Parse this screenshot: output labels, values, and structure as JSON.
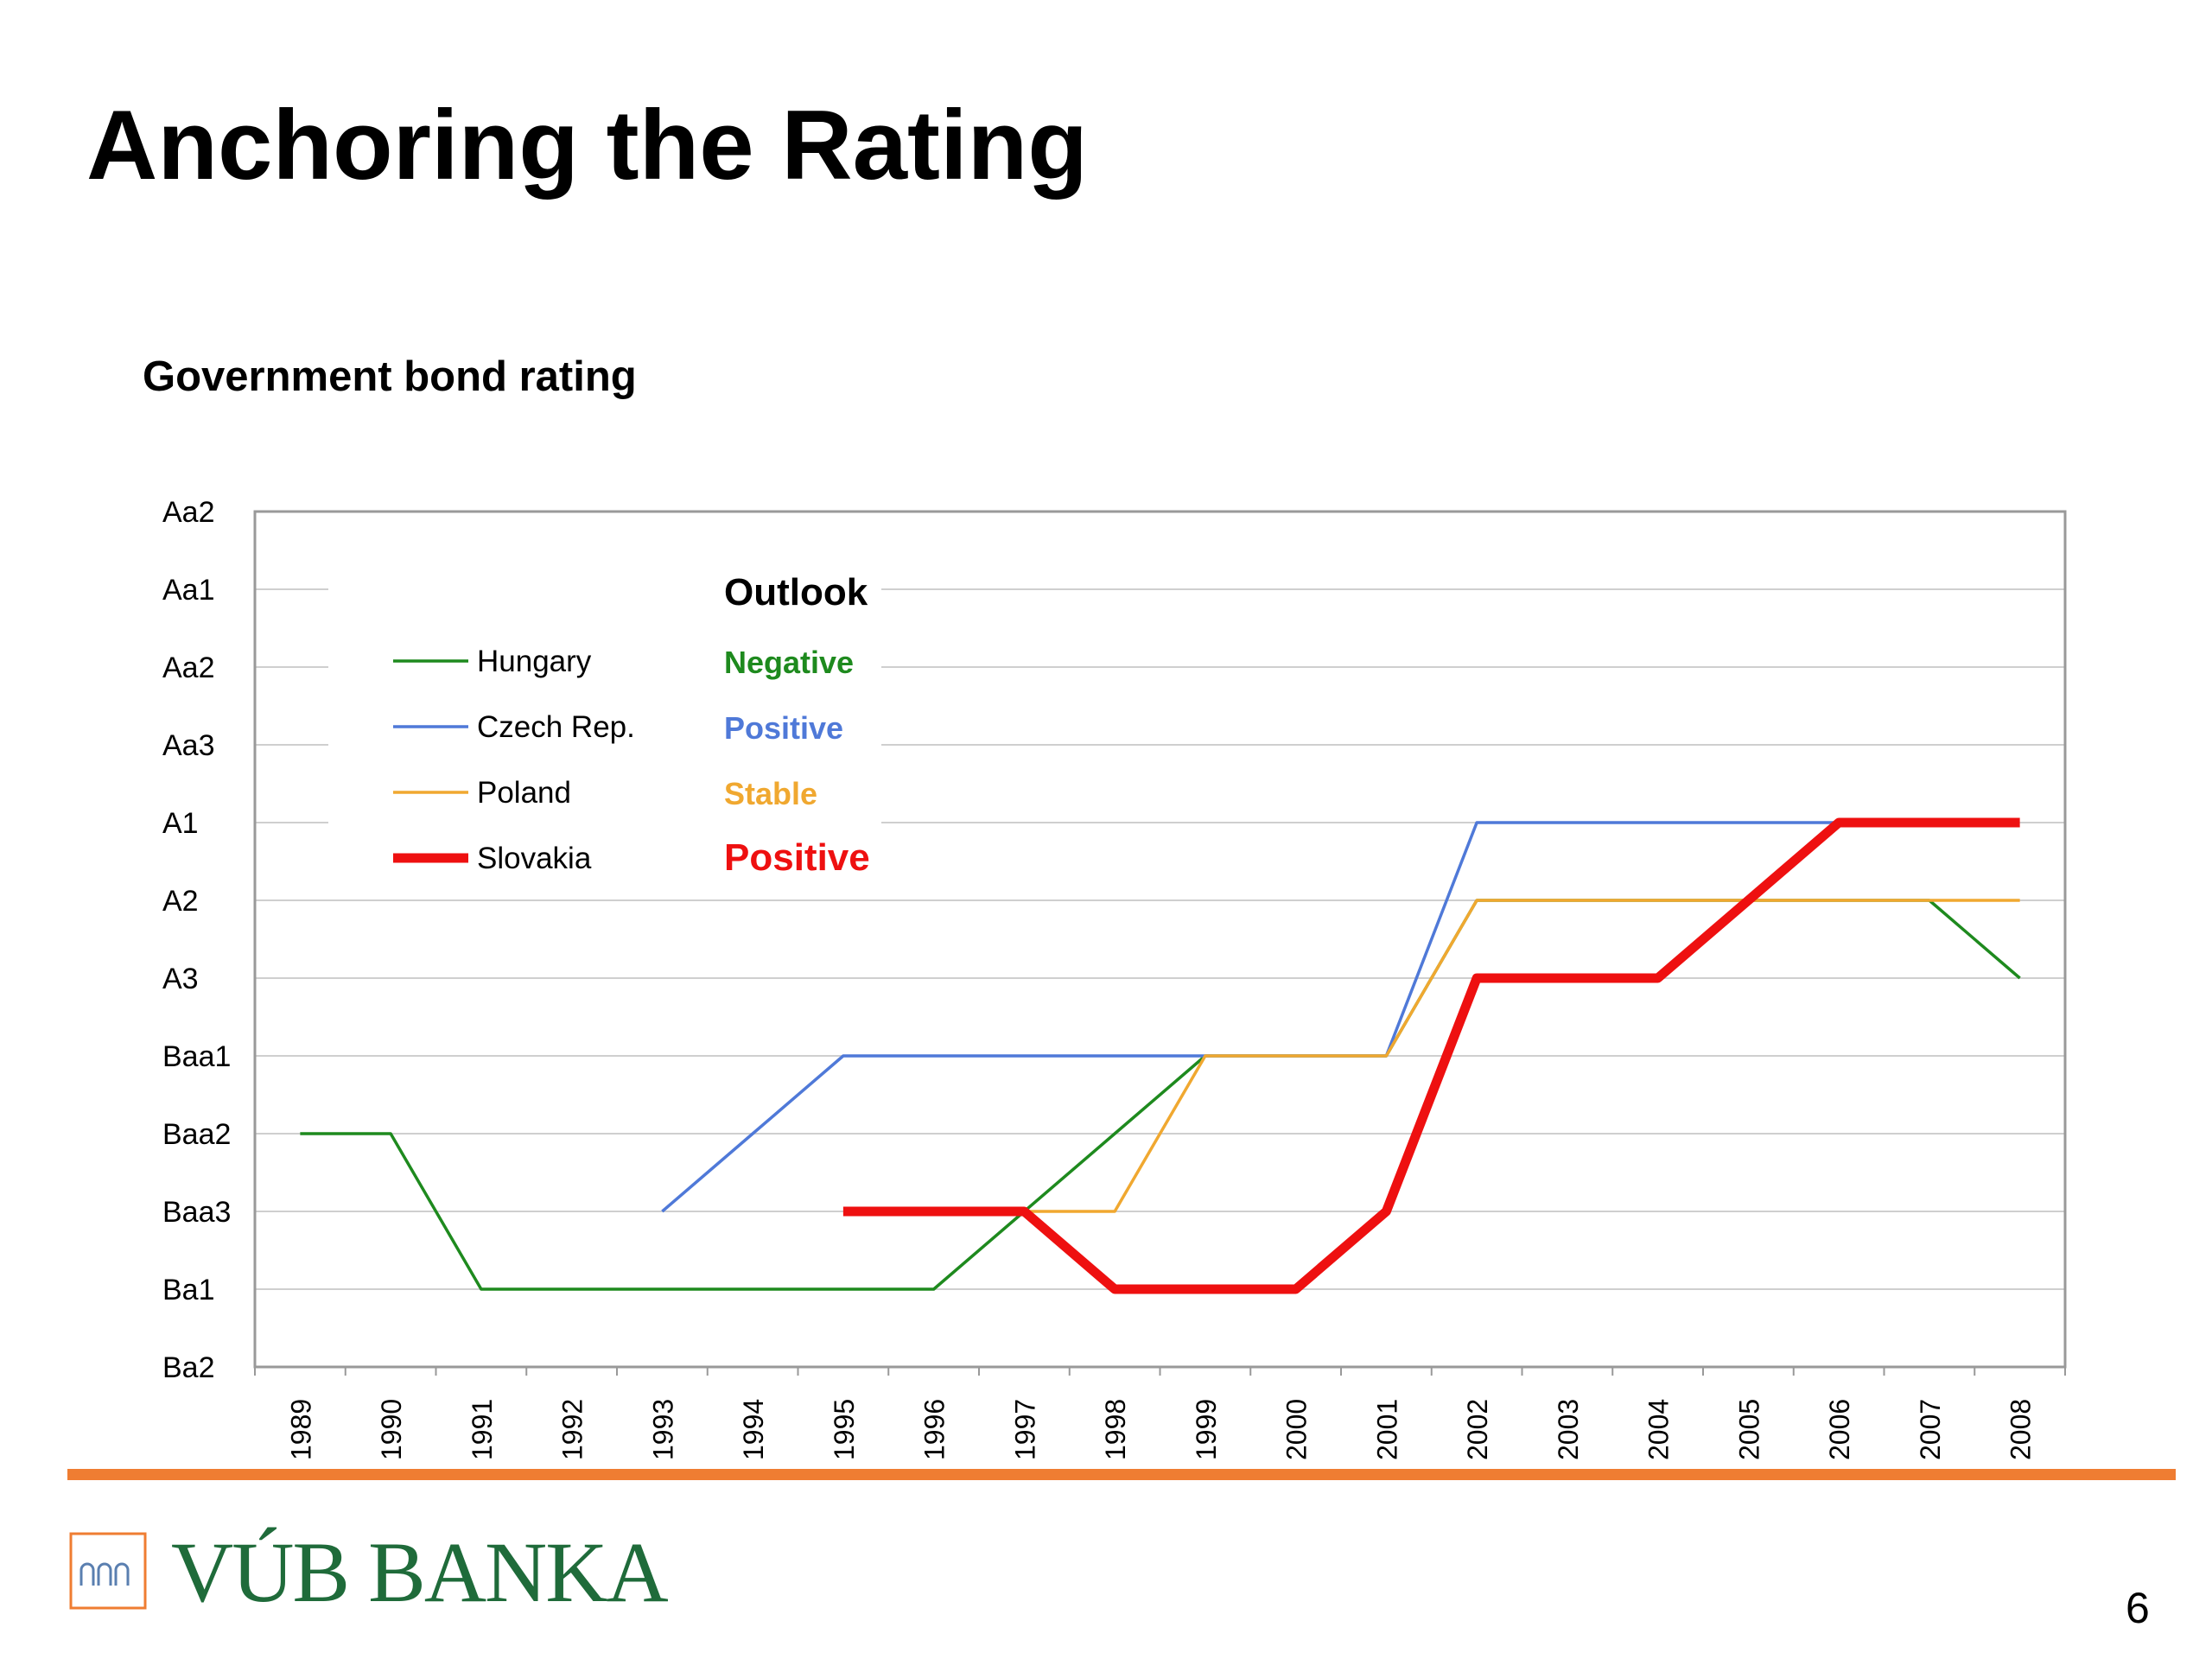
{
  "slide": {
    "title": "Anchoring the Rating",
    "page_number": "6",
    "footer_brand": "VÚB BANKA"
  },
  "colors": {
    "accent_orange": "#ef7d32",
    "brand_green": "#1f6b3a",
    "hungary": "#1e8a1e",
    "czech": "#4f79d8",
    "poland": "#f0a830",
    "slovakia": "#ee1010"
  },
  "chart_data": {
    "type": "line",
    "title": "Government bond rating",
    "xlabel": "",
    "ylabel": "",
    "x": [
      "1989",
      "1990",
      "1991",
      "1992",
      "1993",
      "1994",
      "1995",
      "1996",
      "1997",
      "1998",
      "1999",
      "2000",
      "2001",
      "2002",
      "2003",
      "2004",
      "2005",
      "2006",
      "2007",
      "2008"
    ],
    "y_tick_labels": [
      "Ba2",
      "Ba1",
      "Baa3",
      "Baa2",
      "Baa1",
      "A3",
      "A2",
      "A1",
      "Aa3",
      "Aa2",
      "Aa1",
      "Aa2"
    ],
    "ylim": [
      0,
      11
    ],
    "grid": true,
    "legend": {
      "placement": "top-left"
    },
    "outlook_header": "Outlook",
    "series": [
      {
        "name": "Hungary",
        "outlook": "Negative",
        "color": "#1e8a1e",
        "values": [
          3,
          3,
          1,
          1,
          1,
          1,
          1,
          1,
          2,
          3,
          4,
          4,
          4,
          6,
          6,
          6,
          6,
          6,
          6,
          5
        ]
      },
      {
        "name": "Czech Rep.",
        "outlook": "Positive",
        "color": "#4f79d8",
        "values": [
          null,
          null,
          null,
          null,
          2,
          3,
          4,
          4,
          4,
          4,
          4,
          4,
          4,
          7,
          7,
          7,
          7,
          7,
          null,
          null
        ]
      },
      {
        "name": "Poland",
        "outlook": "Stable",
        "color": "#f0a830",
        "values": [
          null,
          null,
          null,
          null,
          null,
          null,
          null,
          null,
          2,
          2,
          4,
          4,
          4,
          6,
          6,
          6,
          6,
          6,
          6,
          6
        ]
      },
      {
        "name": "Slovakia",
        "outlook": "Positive",
        "color": "#ee1010",
        "values": [
          null,
          null,
          null,
          null,
          null,
          null,
          2,
          2,
          2,
          1,
          1,
          1,
          2,
          5,
          5,
          5,
          6,
          7,
          7,
          7
        ]
      }
    ]
  }
}
